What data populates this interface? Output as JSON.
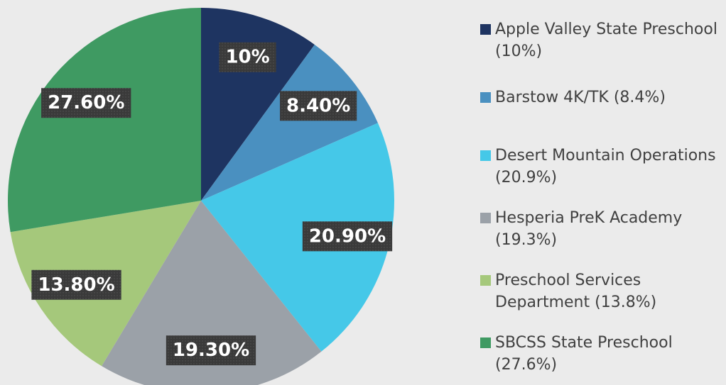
{
  "chart_data": {
    "type": "pie",
    "categories": [
      "Apple Valley State Preschool (10%)",
      "Barstow 4K/TK (8.4%)",
      "Desert Mountain Operations (20.9%)",
      "Hesperia PreK Academy (19.3%)",
      "Preschool Services Department (13.8%)",
      "SBCSS State Preschool (27.6%)"
    ],
    "values": [
      10,
      8.4,
      20.9,
      19.3,
      13.8,
      27.6
    ],
    "value_labels": [
      "10%",
      "8.40%",
      "20.90%",
      "19.30%",
      "13.80%",
      "27.60%"
    ],
    "colors": [
      "#1e3461",
      "#4a90c0",
      "#45c8e8",
      "#9ba1a8",
      "#a5c87b",
      "#3f9a62"
    ],
    "legend": "right"
  }
}
